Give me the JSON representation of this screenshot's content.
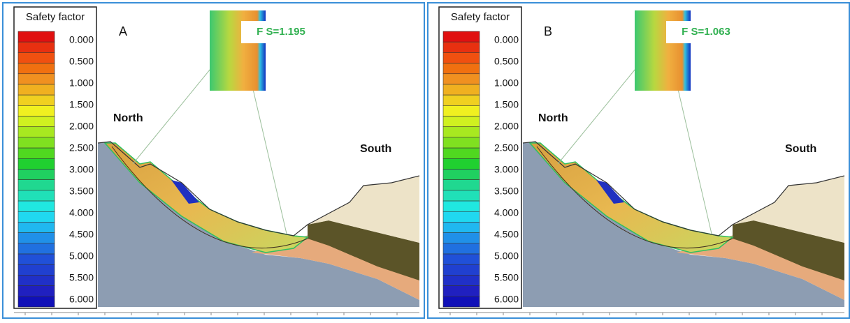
{
  "panels": [
    {
      "legend_title": "Safety factor",
      "legend_labels": [
        "0.000",
        "0.500",
        "1.000",
        "1.500",
        "2.000",
        "2.500",
        "3.000",
        "3.500",
        "4.000",
        "4.500",
        "5.000",
        "5.500",
        "6.000"
      ],
      "label": "A",
      "north": "North",
      "south": "South",
      "fs": "F S=1.195"
    },
    {
      "legend_title": "Safety factor",
      "legend_labels": [
        "0.000",
        "0.500",
        "1.000",
        "1.500",
        "2.000",
        "2.500",
        "3.000",
        "3.500",
        "4.000",
        "4.500",
        "5.000",
        "5.500",
        "6.000"
      ],
      "label": "B",
      "north": "North",
      "south": "South",
      "fs": "F S=1.063"
    }
  ]
}
